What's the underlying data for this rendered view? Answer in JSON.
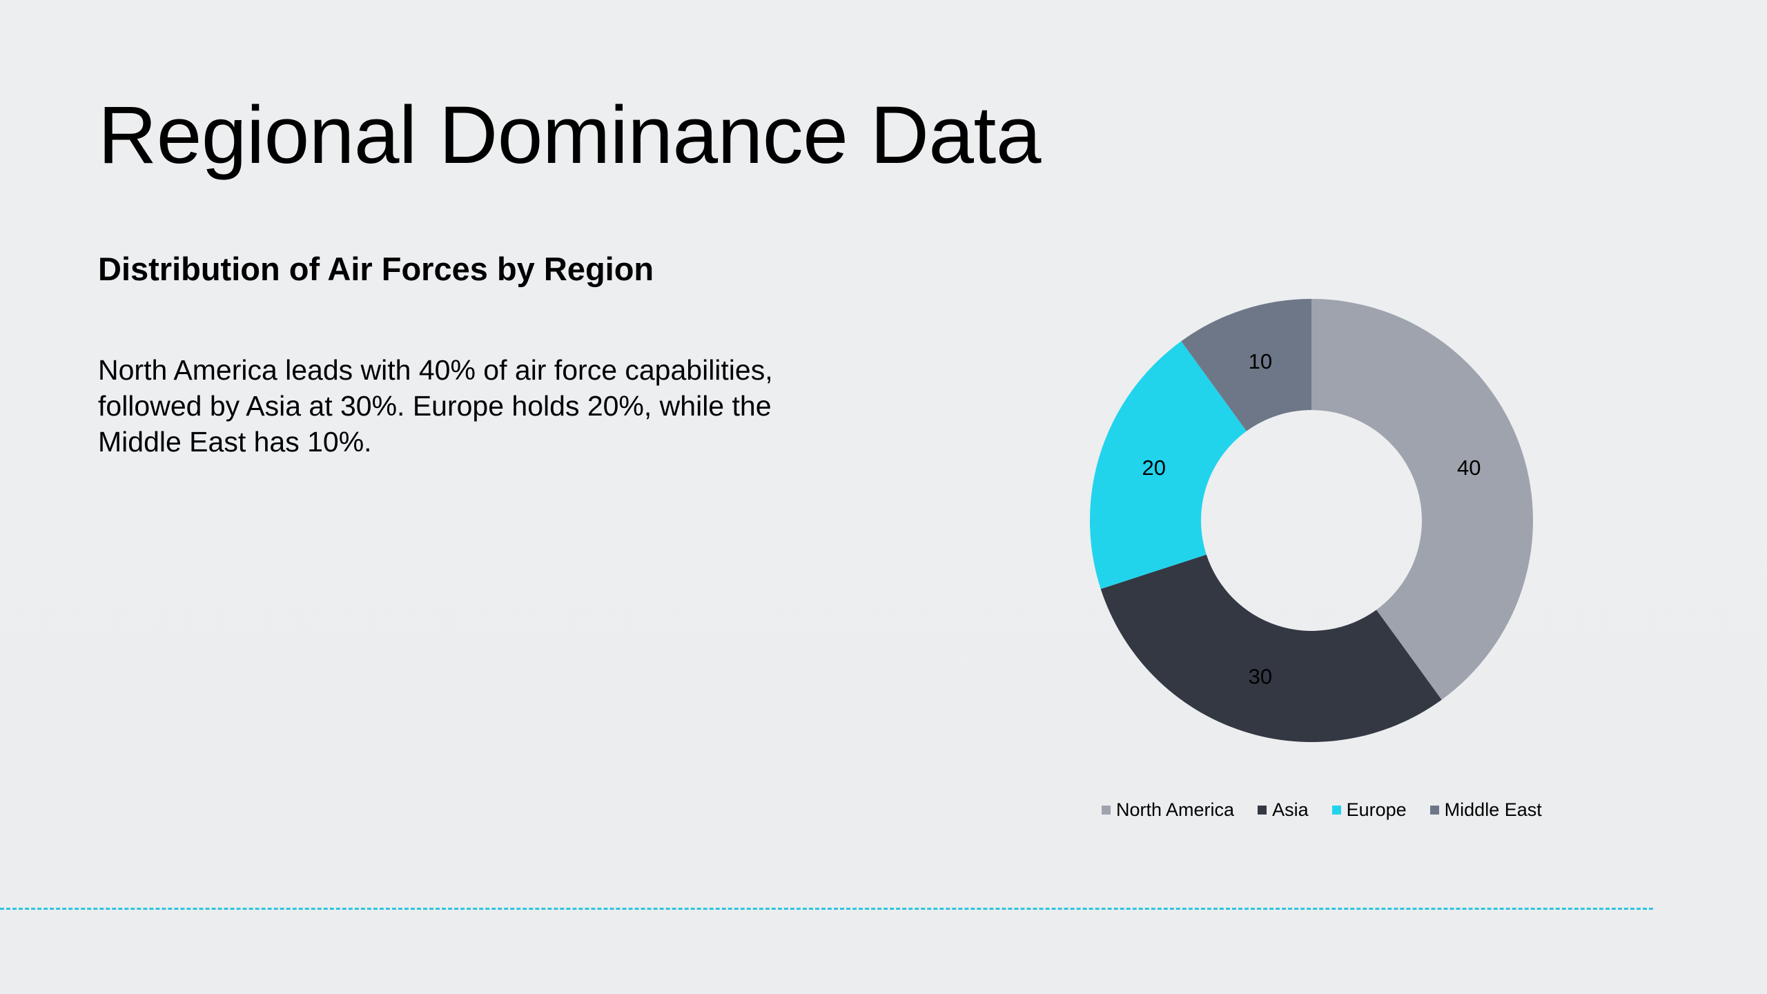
{
  "slide": {
    "title": "Regional Dominance Data",
    "subtitle": "Distribution of Air Forces by Region",
    "body": "North America leads with 40% of air force capabilities, followed by Asia at 30%. Europe holds 20%, while the Middle East has 10%."
  },
  "colors": {
    "background": "#eceef0",
    "divider": "#2fc3e0"
  },
  "chart_data": {
    "type": "pie",
    "donut": true,
    "categories": [
      "North America",
      "Asia",
      "Europe",
      "Middle East"
    ],
    "values": [
      40,
      30,
      20,
      10
    ],
    "data_labels": [
      "40",
      "30",
      "20",
      "10"
    ],
    "colors": [
      "#9ea3ad",
      "#343843",
      "#22d3ec",
      "#6e7787"
    ],
    "legend_position": "bottom",
    "start_angle_deg": 0,
    "direction": "clockwise"
  }
}
